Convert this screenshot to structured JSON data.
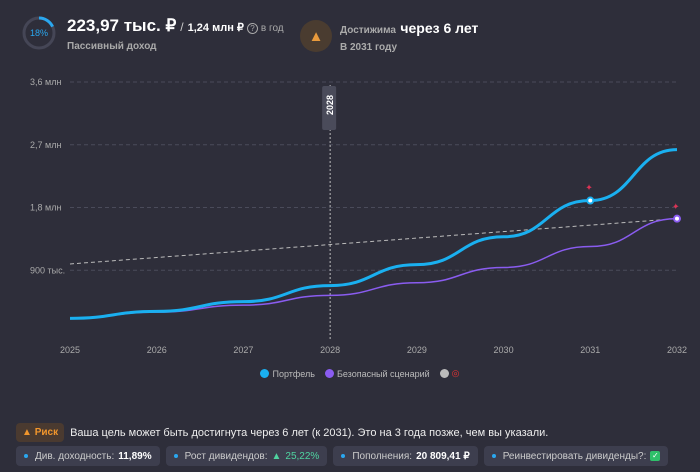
{
  "header": {
    "progress_percent": 18,
    "progress_label": "18%",
    "income": "223,97 тыс. ₽",
    "separator": "/",
    "target": "1,24 млн ₽",
    "help": "?",
    "period": "в год",
    "income_caption": "Пассивный доход",
    "reach_prefix": "Достижима",
    "reach_value": "через 6 лет",
    "reach_year": "В 2031 году"
  },
  "chart_data": {
    "type": "line",
    "x": [
      2025,
      2026,
      2027,
      2028,
      2029,
      2030,
      2031,
      2032
    ],
    "xticks": [
      "2025",
      "2026",
      "2027",
      "2028",
      "2029",
      "2030",
      "2031",
      "2032"
    ],
    "yticks": [
      "900 тыс.",
      "1,8 млн",
      "2,7 млн",
      "3,6 млн"
    ],
    "ytick_values": [
      900000,
      1800000,
      2700000,
      3600000
    ],
    "ylim": [
      0,
      3600000
    ],
    "series": [
      {
        "name": "Портфель",
        "color": "#1ab0f0",
        "values": [
          210000,
          310000,
          450000,
          680000,
          980000,
          1380000,
          1900000,
          2630000
        ]
      },
      {
        "name": "Безопасный сценарий",
        "color": "#8a5cf0",
        "values": [
          210000,
          300000,
          400000,
          540000,
          720000,
          940000,
          1240000,
          1640000
        ]
      },
      {
        "name": "Цель",
        "color": "#bbbbbb",
        "values": [
          990000,
          1083000,
          1176000,
          1269000,
          1361000,
          1454000,
          1547000,
          1640000
        ]
      }
    ],
    "marker": {
      "year": 2028,
      "label": "2028"
    },
    "legend": [
      "Портфель",
      "Безопасный сценарий",
      ""
    ]
  },
  "risk": {
    "badge": "Риск",
    "message": "Ваша цель может быть достигнута через 6 лет (к 2031). Это на 3 года позже, чем вы указали."
  },
  "chips": {
    "yield_label": "Див. доходность:",
    "yield_value": "11,89%",
    "growth_label": "Рост дивидендов:",
    "growth_value": "25,22%",
    "topup_label": "Пополнения:",
    "topup_value": "20 809,41 ₽",
    "reinvest_label": "Реинвестировать дивиденды?:",
    "reinvest_check": "✓"
  }
}
